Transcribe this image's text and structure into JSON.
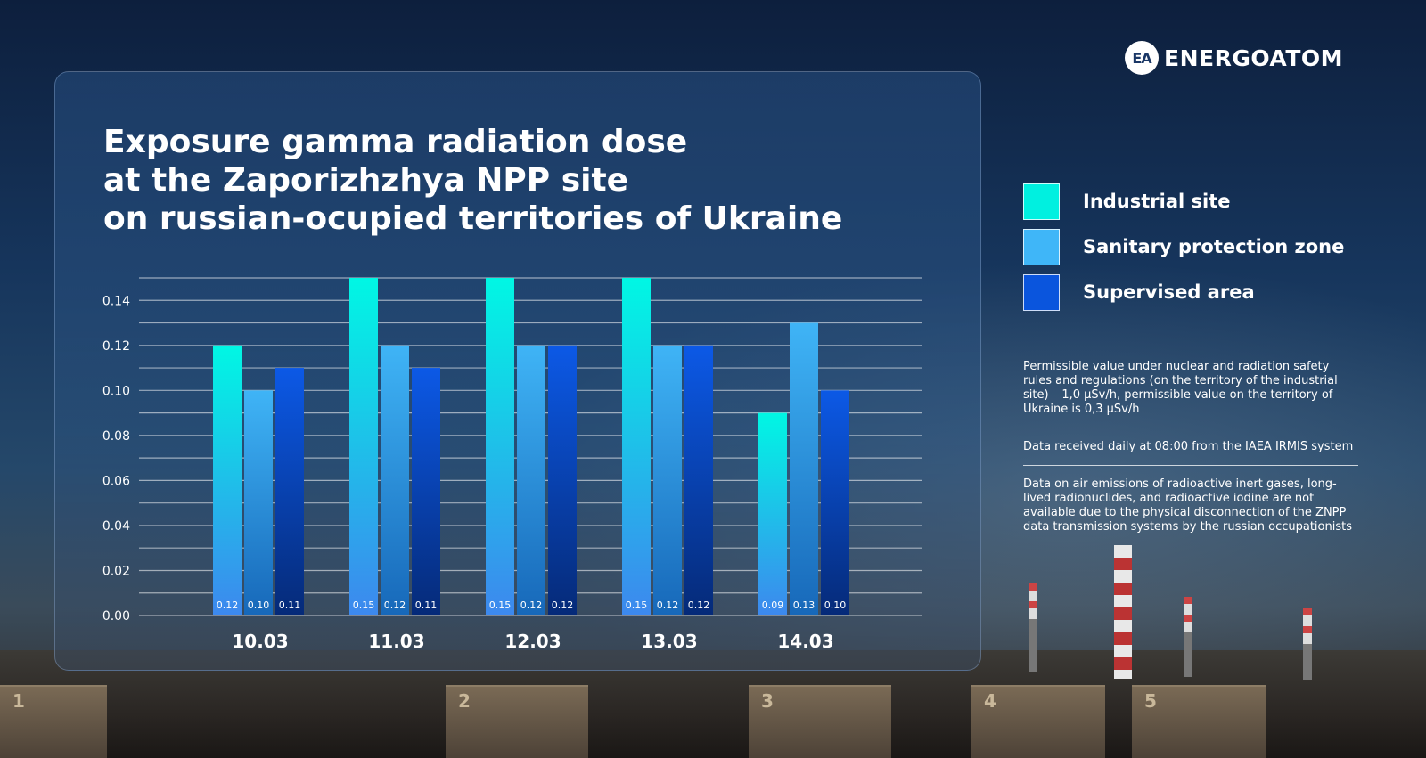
{
  "brand": {
    "logo_mark": "EA",
    "name": "ENERGOATOM"
  },
  "title_lines": [
    "Exposure gamma radiation dose",
    "at the Zaporizhzhya NPP site",
    "on russian-ocupied territories of Ukraine"
  ],
  "legend": [
    {
      "label": "Industrial site",
      "color": "#00f0e0"
    },
    {
      "label": "Sanitary protection zone",
      "color": "#3fb6f8"
    },
    {
      "label": "Supervised area",
      "color": "#0a55dd"
    }
  ],
  "notes": [
    "Permissible value under nuclear and radiation safety rules and regulations (on the territory of the industrial site) – 1,0 µSv/h, permissible value on the territory of Ukraine is 0,3 µSv/h",
    "Data received daily at 08:00 from the IAEA IRMIS system",
    "Data on air emissions of radioactive inert gases, long-lived radionuclides, and radioactive iodine are not available due to the physical disconnection of the ZNPP data transmission systems by the russian occupationists"
  ],
  "chart_data": {
    "type": "bar",
    "title": "Exposure gamma radiation dose at the Zaporizhzhya NPP site on russian-ocupied territories of Ukraine",
    "xlabel": "",
    "ylabel": "",
    "categories": [
      "10.03",
      "11.03",
      "12.03",
      "13.03",
      "14.03"
    ],
    "series": [
      {
        "name": "Industrial site",
        "values": [
          0.12,
          0.15,
          0.15,
          0.15,
          0.09
        ],
        "labels": [
          "0.12",
          "0.15",
          "0.15",
          "0.15",
          "0.09"
        ],
        "color_top": "#00f7e4",
        "color_bottom": "#3d88ee"
      },
      {
        "name": "Sanitary protection zone",
        "values": [
          0.1,
          0.12,
          0.12,
          0.12,
          0.13
        ],
        "labels": [
          "0.10",
          "0.12",
          "0.12",
          "0.12",
          "0.13"
        ],
        "color_top": "#3fb4f6",
        "color_bottom": "#1768b9"
      },
      {
        "name": "Supervised area",
        "values": [
          0.11,
          0.11,
          0.12,
          0.12,
          0.1
        ],
        "labels": [
          "0.11",
          "0.11",
          "0.12",
          "0.12",
          "0.10"
        ],
        "color_top": "#0c59e6",
        "color_bottom": "#052a78"
      }
    ],
    "ylim": [
      0,
      0.15
    ],
    "yticks": [
      0.0,
      0.02,
      0.04,
      0.06,
      0.08,
      0.1,
      0.12,
      0.14
    ],
    "ytick_labels": [
      "0.00",
      "0.02",
      "0.04",
      "0.06",
      "0.08",
      "0.10",
      "0.12",
      "0.14"
    ],
    "grid": true,
    "legend_position": "right"
  }
}
